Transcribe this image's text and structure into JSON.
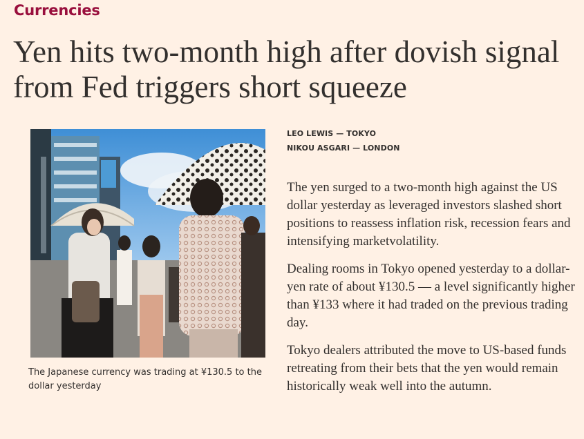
{
  "section": "Currencies",
  "headline": "Yen hits two-month high after dovish signal from Fed triggers short squeeze",
  "bylines": [
    "LEO LEWIS — TOKYO",
    "NIKOU ASGARI — LONDON"
  ],
  "caption": "The Japanese currency was trading at ¥130.5 to the dollar yesterday",
  "paragraphs": [
    "The yen surged to a two-month high against the US dollar yesterday as leveraged investors slashed short positions to reassess inflation risk, recession fears and intensifying marketvolatility.",
    "Dealing rooms in Tokyo opened yesterday to a dollar-yen rate of about ¥130.5 — a level significantly higher than ¥133 where it had traded on the previous trading day.",
    "Tokyo dealers attributed the move to US-based funds retreating from their bets that the yen would remain historically weak well into the autumn."
  ],
  "colors": {
    "background": "#fff1e5",
    "section_accent": "#990f3d",
    "text": "#33302e"
  }
}
